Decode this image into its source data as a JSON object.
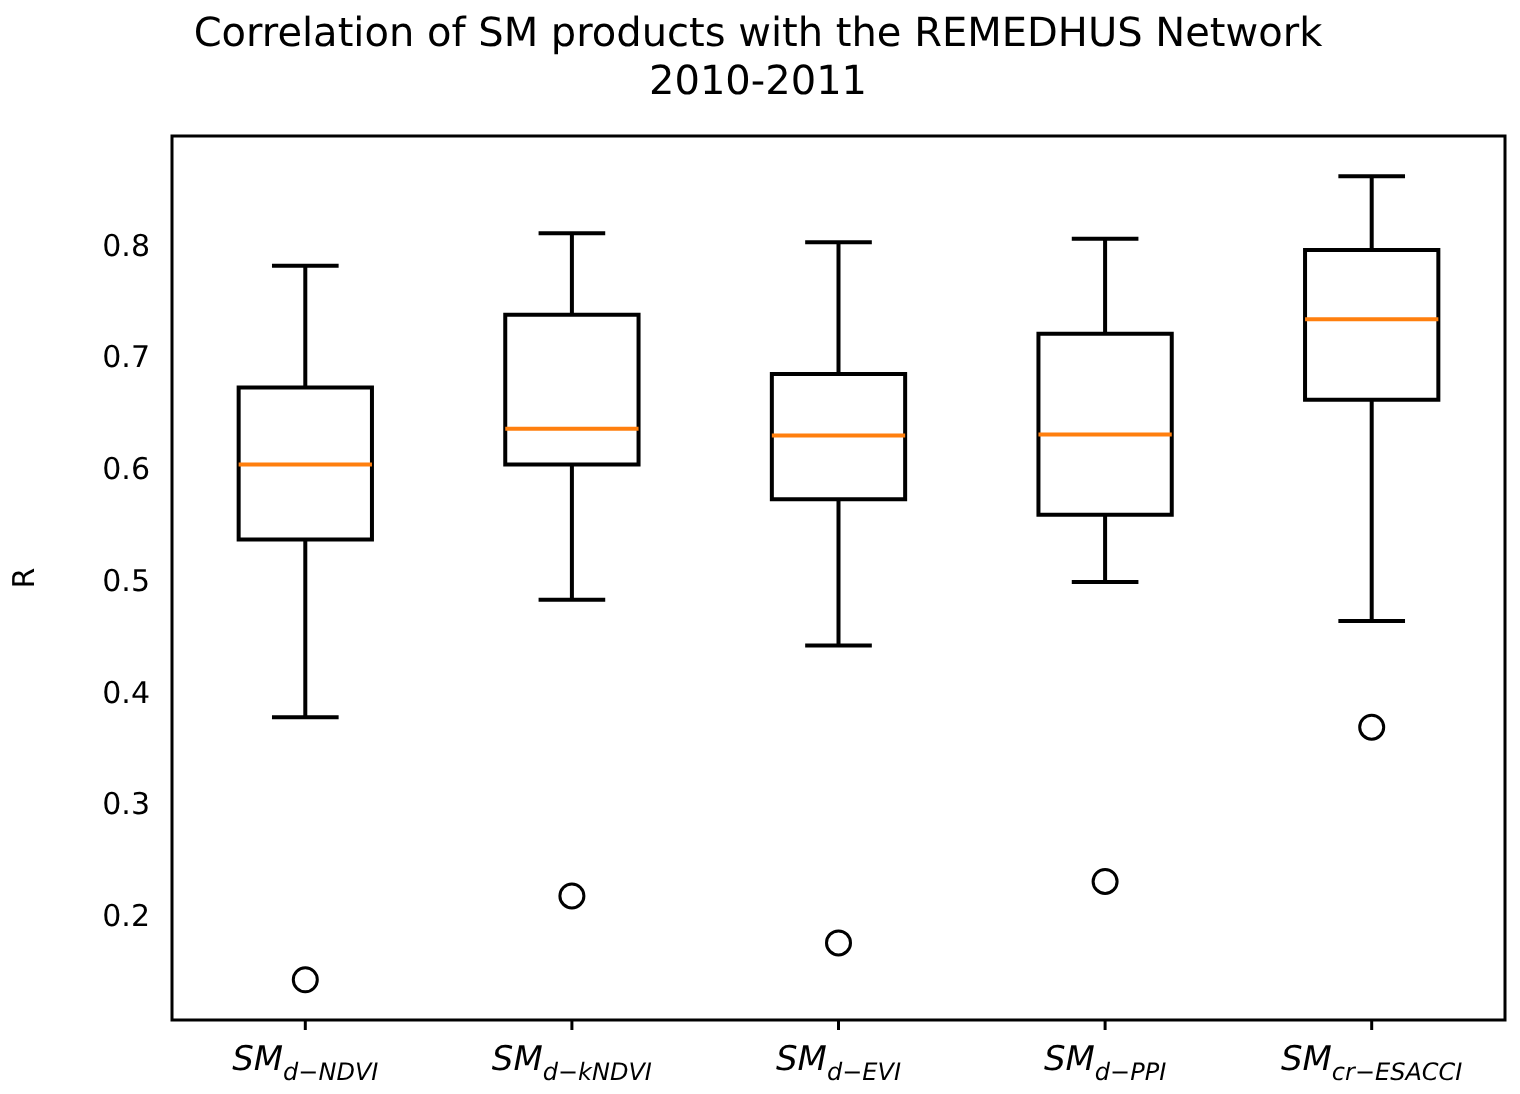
{
  "chart_data": {
    "type": "box",
    "title": "Correlation of SM products with the REMEDHUS Network\n2010-2011",
    "ylabel": "R",
    "categories": [
      "SM$_{d−NDVI}$",
      "SM$_{d−kNDVI}$",
      "SM$_{d−EVI}$",
      "SM$_{d−PPI}$",
      "SM$_{cr−ESACCI}$"
    ],
    "boxes": [
      {
        "low": 0.38,
        "q1": 0.539,
        "median": 0.606,
        "q3": 0.675,
        "high": 0.784,
        "outliers": [
          0.145
        ]
      },
      {
        "low": 0.485,
        "q1": 0.606,
        "median": 0.638,
        "q3": 0.74,
        "high": 0.813,
        "outliers": [
          0.22
        ]
      },
      {
        "low": 0.444,
        "q1": 0.575,
        "median": 0.632,
        "q3": 0.687,
        "high": 0.805,
        "outliers": [
          0.178
        ]
      },
      {
        "low": 0.501,
        "q1": 0.561,
        "median": 0.633,
        "q3": 0.723,
        "high": 0.808,
        "outliers": [
          0.233
        ]
      },
      {
        "low": 0.466,
        "q1": 0.664,
        "median": 0.736,
        "q3": 0.798,
        "high": 0.864,
        "outliers": [
          0.371
        ]
      }
    ],
    "ylim": [
      0.109,
      0.9
    ],
    "yticks": [
      0.2,
      0.3,
      0.4,
      0.5,
      0.6,
      0.7,
      0.8
    ],
    "grid": false,
    "legend": false
  }
}
